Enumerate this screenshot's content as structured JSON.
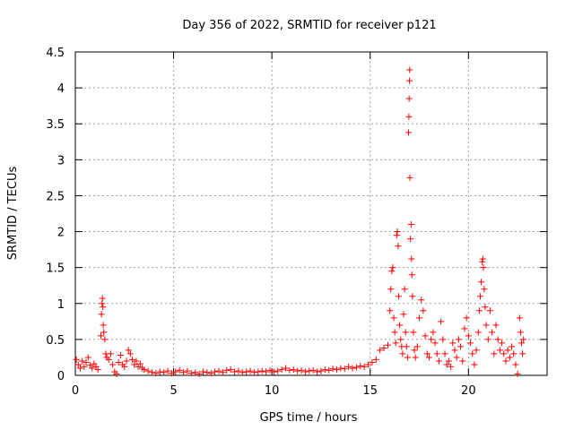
{
  "chart_data": {
    "type": "scatter",
    "title": "Day 356 of 2022, SRMTID for receiver p121",
    "xlabel": "GPS time / hours",
    "ylabel": "SRMTID / TECUs",
    "xlim": [
      0,
      24
    ],
    "ylim": [
      0,
      4.5
    ],
    "x_ticks": [
      0,
      5,
      10,
      15,
      20
    ],
    "x_tick_labels": [
      "0",
      "5",
      "10",
      "15",
      "20"
    ],
    "y_ticks": [
      0,
      0.5,
      1,
      1.5,
      2,
      2.5,
      3,
      3.5,
      4,
      4.5
    ],
    "y_tick_labels": [
      "0",
      "0.5",
      "1",
      "1.5",
      "2",
      "2.5",
      "3",
      "3.5",
      "4",
      "4.5"
    ],
    "grid": true,
    "marker": "+",
    "color": "#ff0000",
    "series": [
      {
        "name": "SRMTID",
        "points": [
          [
            0.05,
            0.22
          ],
          [
            0.15,
            0.15
          ],
          [
            0.25,
            0.1
          ],
          [
            0.35,
            0.2
          ],
          [
            0.45,
            0.12
          ],
          [
            0.55,
            0.18
          ],
          [
            0.65,
            0.25
          ],
          [
            0.75,
            0.14
          ],
          [
            0.85,
            0.1
          ],
          [
            0.95,
            0.16
          ],
          [
            1.05,
            0.12
          ],
          [
            1.15,
            0.08
          ],
          [
            1.3,
            0.55
          ],
          [
            1.33,
            0.85
          ],
          [
            1.36,
            1.0
          ],
          [
            1.38,
            1.07
          ],
          [
            1.4,
            0.95
          ],
          [
            1.42,
            0.7
          ],
          [
            1.45,
            0.6
          ],
          [
            1.5,
            0.5
          ],
          [
            1.55,
            0.3
          ],
          [
            1.6,
            0.25
          ],
          [
            1.7,
            0.22
          ],
          [
            1.8,
            0.3
          ],
          [
            1.9,
            0.15
          ],
          [
            2.0,
            0.05
          ],
          [
            2.1,
            0.02
          ],
          [
            2.2,
            0.18
          ],
          [
            2.3,
            0.28
          ],
          [
            2.4,
            0.15
          ],
          [
            2.5,
            0.12
          ],
          [
            2.6,
            0.2
          ],
          [
            2.7,
            0.35
          ],
          [
            2.8,
            0.3
          ],
          [
            2.9,
            0.22
          ],
          [
            3.0,
            0.15
          ],
          [
            3.1,
            0.2
          ],
          [
            3.2,
            0.12
          ],
          [
            3.3,
            0.16
          ],
          [
            3.4,
            0.1
          ],
          [
            3.5,
            0.08
          ],
          [
            3.7,
            0.06
          ],
          [
            3.9,
            0.04
          ],
          [
            4.1,
            0.03
          ],
          [
            4.3,
            0.05
          ],
          [
            4.5,
            0.04
          ],
          [
            4.7,
            0.06
          ],
          [
            4.9,
            0.03
          ],
          [
            5.1,
            0.05
          ],
          [
            5.3,
            0.07
          ],
          [
            5.5,
            0.04
          ],
          [
            5.7,
            0.06
          ],
          [
            5.9,
            0.03
          ],
          [
            6.1,
            0.04
          ],
          [
            6.3,
            0.02
          ],
          [
            6.5,
            0.05
          ],
          [
            6.7,
            0.04
          ],
          [
            6.9,
            0.03
          ],
          [
            7.1,
            0.05
          ],
          [
            7.3,
            0.06
          ],
          [
            7.5,
            0.04
          ],
          [
            7.7,
            0.07
          ],
          [
            7.9,
            0.08
          ],
          [
            8.1,
            0.05
          ],
          [
            8.3,
            0.06
          ],
          [
            8.5,
            0.04
          ],
          [
            8.7,
            0.05
          ],
          [
            8.9,
            0.06
          ],
          [
            9.1,
            0.04
          ],
          [
            9.3,
            0.05
          ],
          [
            9.5,
            0.06
          ],
          [
            9.7,
            0.05
          ],
          [
            9.9,
            0.07
          ],
          [
            10.1,
            0.05
          ],
          [
            10.3,
            0.06
          ],
          [
            10.5,
            0.08
          ],
          [
            10.7,
            0.1
          ],
          [
            10.9,
            0.07
          ],
          [
            11.1,
            0.08
          ],
          [
            11.3,
            0.06
          ],
          [
            11.5,
            0.07
          ],
          [
            11.7,
            0.05
          ],
          [
            11.9,
            0.06
          ],
          [
            12.1,
            0.07
          ],
          [
            12.3,
            0.05
          ],
          [
            12.5,
            0.06
          ],
          [
            12.7,
            0.08
          ],
          [
            12.9,
            0.07
          ],
          [
            13.1,
            0.09
          ],
          [
            13.3,
            0.08
          ],
          [
            13.5,
            0.1
          ],
          [
            13.7,
            0.09
          ],
          [
            13.9,
            0.12
          ],
          [
            14.1,
            0.1
          ],
          [
            14.3,
            0.11
          ],
          [
            14.5,
            0.13
          ],
          [
            14.7,
            0.12
          ],
          [
            14.9,
            0.15
          ],
          [
            15.1,
            0.18
          ],
          [
            15.3,
            0.22
          ],
          [
            15.5,
            0.35
          ],
          [
            15.7,
            0.38
          ],
          [
            15.9,
            0.42
          ],
          [
            16.0,
            0.9
          ],
          [
            16.05,
            1.2
          ],
          [
            16.1,
            1.45
          ],
          [
            16.15,
            1.5
          ],
          [
            16.2,
            0.8
          ],
          [
            16.25,
            0.6
          ],
          [
            16.3,
            0.45
          ],
          [
            16.35,
            1.95
          ],
          [
            16.38,
            2.0
          ],
          [
            16.42,
            1.8
          ],
          [
            16.45,
            1.1
          ],
          [
            16.5,
            0.7
          ],
          [
            16.55,
            0.5
          ],
          [
            16.6,
            0.4
          ],
          [
            16.65,
            0.3
          ],
          [
            16.7,
            0.85
          ],
          [
            16.75,
            1.2
          ],
          [
            16.8,
            0.6
          ],
          [
            16.85,
            0.4
          ],
          [
            16.9,
            0.25
          ],
          [
            16.95,
            3.38
          ],
          [
            16.97,
            3.6
          ],
          [
            16.98,
            3.85
          ],
          [
            17.0,
            4.1
          ],
          [
            17.01,
            4.25
          ],
          [
            17.02,
            2.75
          ],
          [
            17.05,
            1.9
          ],
          [
            17.08,
            2.1
          ],
          [
            17.1,
            1.62
          ],
          [
            17.12,
            1.4
          ],
          [
            17.15,
            1.1
          ],
          [
            17.2,
            0.6
          ],
          [
            17.25,
            0.35
          ],
          [
            17.3,
            0.25
          ],
          [
            17.4,
            0.4
          ],
          [
            17.5,
            0.8
          ],
          [
            17.6,
            1.05
          ],
          [
            17.7,
            0.9
          ],
          [
            17.8,
            0.55
          ],
          [
            17.9,
            0.3
          ],
          [
            18.0,
            0.25
          ],
          [
            18.1,
            0.5
          ],
          [
            18.2,
            0.6
          ],
          [
            18.3,
            0.45
          ],
          [
            18.4,
            0.3
          ],
          [
            18.5,
            0.2
          ],
          [
            18.6,
            0.75
          ],
          [
            18.7,
            0.5
          ],
          [
            18.8,
            0.3
          ],
          [
            18.9,
            0.15
          ],
          [
            19.0,
            0.2
          ],
          [
            19.1,
            0.12
          ],
          [
            19.2,
            0.45
          ],
          [
            19.3,
            0.35
          ],
          [
            19.4,
            0.25
          ],
          [
            19.5,
            0.5
          ],
          [
            19.6,
            0.4
          ],
          [
            19.7,
            0.2
          ],
          [
            19.8,
            0.65
          ],
          [
            19.9,
            0.8
          ],
          [
            20.0,
            0.55
          ],
          [
            20.1,
            0.45
          ],
          [
            20.2,
            0.3
          ],
          [
            20.3,
            0.15
          ],
          [
            20.4,
            0.35
          ],
          [
            20.5,
            0.6
          ],
          [
            20.55,
            0.9
          ],
          [
            20.6,
            1.1
          ],
          [
            20.65,
            1.3
          ],
          [
            20.7,
            1.58
          ],
          [
            20.73,
            1.62
          ],
          [
            20.76,
            1.5
          ],
          [
            20.8,
            1.2
          ],
          [
            20.85,
            0.95
          ],
          [
            20.9,
            0.7
          ],
          [
            21.0,
            0.5
          ],
          [
            21.1,
            0.9
          ],
          [
            21.2,
            0.6
          ],
          [
            21.3,
            0.3
          ],
          [
            21.4,
            0.7
          ],
          [
            21.5,
            0.5
          ],
          [
            21.6,
            0.35
          ],
          [
            21.7,
            0.45
          ],
          [
            21.8,
            0.3
          ],
          [
            21.9,
            0.2
          ],
          [
            22.0,
            0.35
          ],
          [
            22.1,
            0.25
          ],
          [
            22.2,
            0.4
          ],
          [
            22.3,
            0.3
          ],
          [
            22.4,
            0.15
          ],
          [
            22.5,
            0.02
          ],
          [
            22.6,
            0.8
          ],
          [
            22.65,
            0.6
          ],
          [
            22.7,
            0.45
          ],
          [
            22.75,
            0.3
          ],
          [
            22.8,
            0.5
          ]
        ]
      }
    ]
  }
}
